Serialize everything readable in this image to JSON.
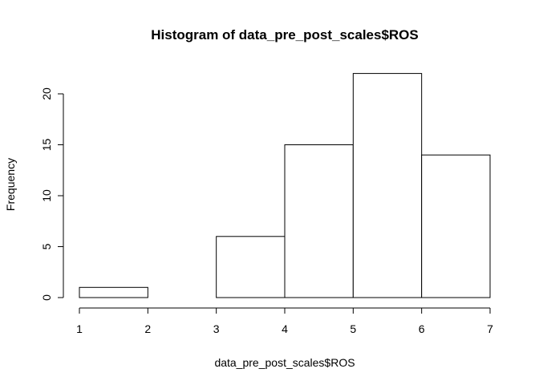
{
  "chart_data": {
    "type": "bar",
    "title": "Histogram of data_pre_post_scales$ROS",
    "xlabel": "data_pre_post_scales$ROS",
    "ylabel": "Frequency",
    "bin_edges": [
      1,
      2,
      3,
      4,
      5,
      6,
      7
    ],
    "values": [
      1,
      0,
      6,
      15,
      22,
      14
    ],
    "xlim": [
      1,
      7
    ],
    "ylim": [
      0,
      22
    ],
    "x_ticks": [
      "1",
      "2",
      "3",
      "4",
      "5",
      "6",
      "7"
    ],
    "y_ticks": [
      "0",
      "5",
      "10",
      "15",
      "20"
    ],
    "grid": false,
    "colors": {
      "bar_fill": "#ffffff",
      "bar_stroke": "#000000"
    }
  }
}
